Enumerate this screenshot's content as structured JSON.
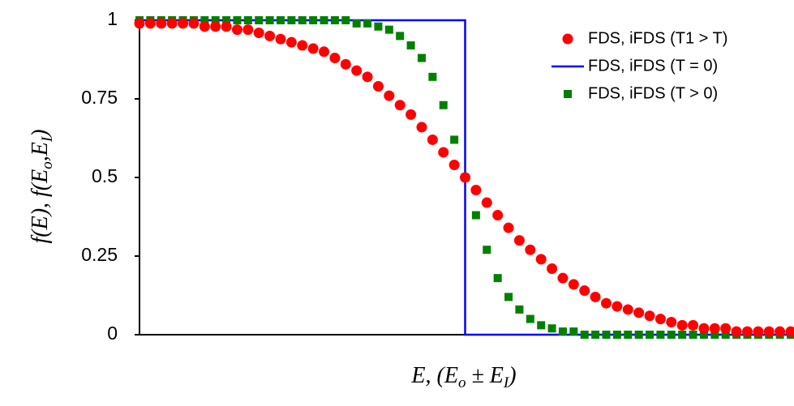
{
  "chart_data": {
    "type": "scatter",
    "ylabel": [
      "f(E), f(E",
      "o",
      ",E",
      "I",
      ")"
    ],
    "xlabel": [
      "E,  (E",
      "o",
      " ± E",
      "I",
      ")"
    ],
    "xlim": [
      -30,
      30
    ],
    "ylim": [
      0,
      1
    ],
    "yticks": [
      0,
      0.25,
      0.5,
      0.75,
      1
    ],
    "legend": "top-right",
    "x": [
      -30,
      -29,
      -28,
      -27,
      -26,
      -25,
      -24,
      -23,
      -22,
      -21,
      -20,
      -19,
      -18,
      -17,
      -16,
      -15,
      -14,
      -13,
      -12,
      -11,
      -10,
      -9,
      -8,
      -7,
      -6,
      -5,
      -4,
      -3,
      -2,
      -1,
      0,
      1,
      2,
      3,
      4,
      5,
      6,
      7,
      8,
      9,
      10,
      11,
      12,
      13,
      14,
      15,
      16,
      17,
      18,
      19,
      20,
      21,
      22,
      23,
      24,
      25,
      26,
      27,
      28,
      29,
      30
    ],
    "series": [
      {
        "name": "FDS, iFDS (T1 > T)",
        "color": "#ff0000",
        "marker": "circle",
        "values": [
          0.99,
          0.99,
          0.99,
          0.99,
          0.99,
          0.99,
          0.98,
          0.98,
          0.98,
          0.97,
          0.97,
          0.96,
          0.95,
          0.94,
          0.93,
          0.92,
          0.91,
          0.9,
          0.88,
          0.86,
          0.84,
          0.82,
          0.79,
          0.76,
          0.73,
          0.7,
          0.66,
          0.62,
          0.58,
          0.54,
          0.5,
          0.46,
          0.42,
          0.38,
          0.34,
          0.3,
          0.27,
          0.24,
          0.21,
          0.18,
          0.16,
          0.14,
          0.12,
          0.1,
          0.09,
          0.08,
          0.07,
          0.06,
          0.05,
          0.04,
          0.03,
          0.03,
          0.02,
          0.02,
          0.02,
          0.01,
          0.01,
          0.01,
          0.01,
          0.01,
          0.01
        ]
      },
      {
        "name": "FDS, iFDS (T = 0)",
        "color": "#0000ff",
        "marker": "line",
        "x": [
          -30,
          0,
          0,
          30
        ],
        "values": [
          1,
          1,
          0,
          0
        ]
      },
      {
        "name": "FDS, iFDS (T > 0)",
        "color": "#008000",
        "marker": "square",
        "values": [
          1,
          1,
          1,
          1,
          1,
          1,
          1,
          1,
          1,
          1,
          1,
          1,
          1,
          1,
          1,
          1,
          1,
          1,
          1,
          1,
          0.99,
          0.99,
          0.98,
          0.97,
          0.95,
          0.92,
          0.88,
          0.82,
          0.73,
          0.62,
          0.5,
          0.38,
          0.27,
          0.18,
          0.12,
          0.08,
          0.05,
          0.03,
          0.02,
          0.01,
          0.01,
          0,
          0,
          0,
          0,
          0,
          0,
          0,
          0,
          0,
          0,
          0,
          0,
          0,
          0,
          0,
          0,
          0,
          0,
          0,
          0
        ]
      }
    ]
  }
}
